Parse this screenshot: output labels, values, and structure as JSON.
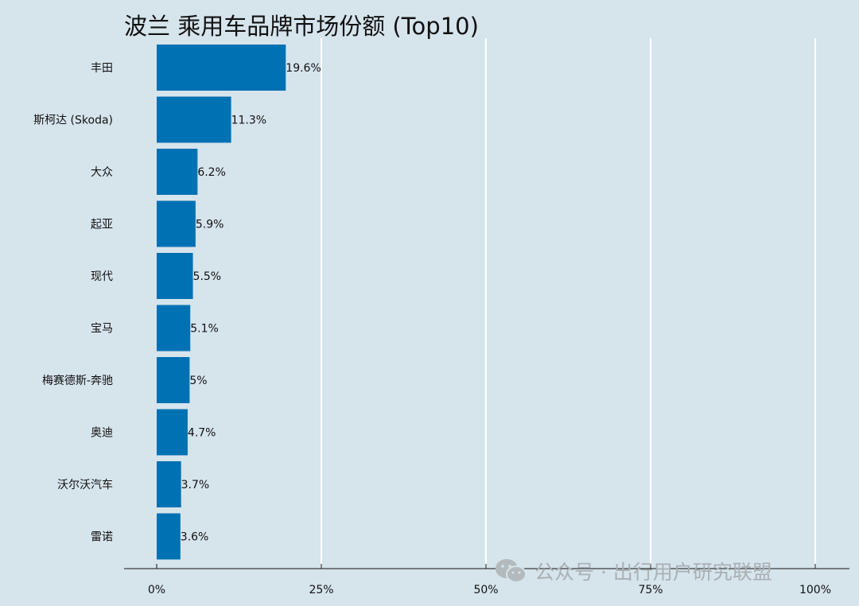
{
  "chart_data": {
    "type": "bar",
    "orientation": "horizontal",
    "title": "波兰 乘用车品牌市场份额 (Top10)",
    "categories": [
      "丰田",
      "斯柯达 (Skoda)",
      "大众",
      "起亚",
      "现代",
      "宝马",
      "梅赛德斯-奔驰",
      "奥迪",
      "沃尔沃汽车",
      "雷诺"
    ],
    "values": [
      19.6,
      11.3,
      6.2,
      5.9,
      5.5,
      5.1,
      5.0,
      4.7,
      3.7,
      3.6
    ],
    "value_labels": [
      "19.6%",
      "11.3%",
      "6.2%",
      "5.9%",
      "5.5%",
      "5.1%",
      "5%",
      "4.7%",
      "3.7%",
      "3.6%"
    ],
    "xlim": [
      0,
      100
    ],
    "x_ticks": [
      0,
      25,
      50,
      75,
      100
    ],
    "x_tick_labels": [
      "0%",
      "25%",
      "50%",
      "75%",
      "100%"
    ],
    "grid": "vertical",
    "legend": "none",
    "colors": {
      "bar": "#0071b2",
      "background": "#d6e4ec",
      "grid": "#ffffff"
    }
  },
  "watermark": {
    "text": "公众号 · 出行用户研究联盟",
    "icon": "wechat-icon"
  }
}
